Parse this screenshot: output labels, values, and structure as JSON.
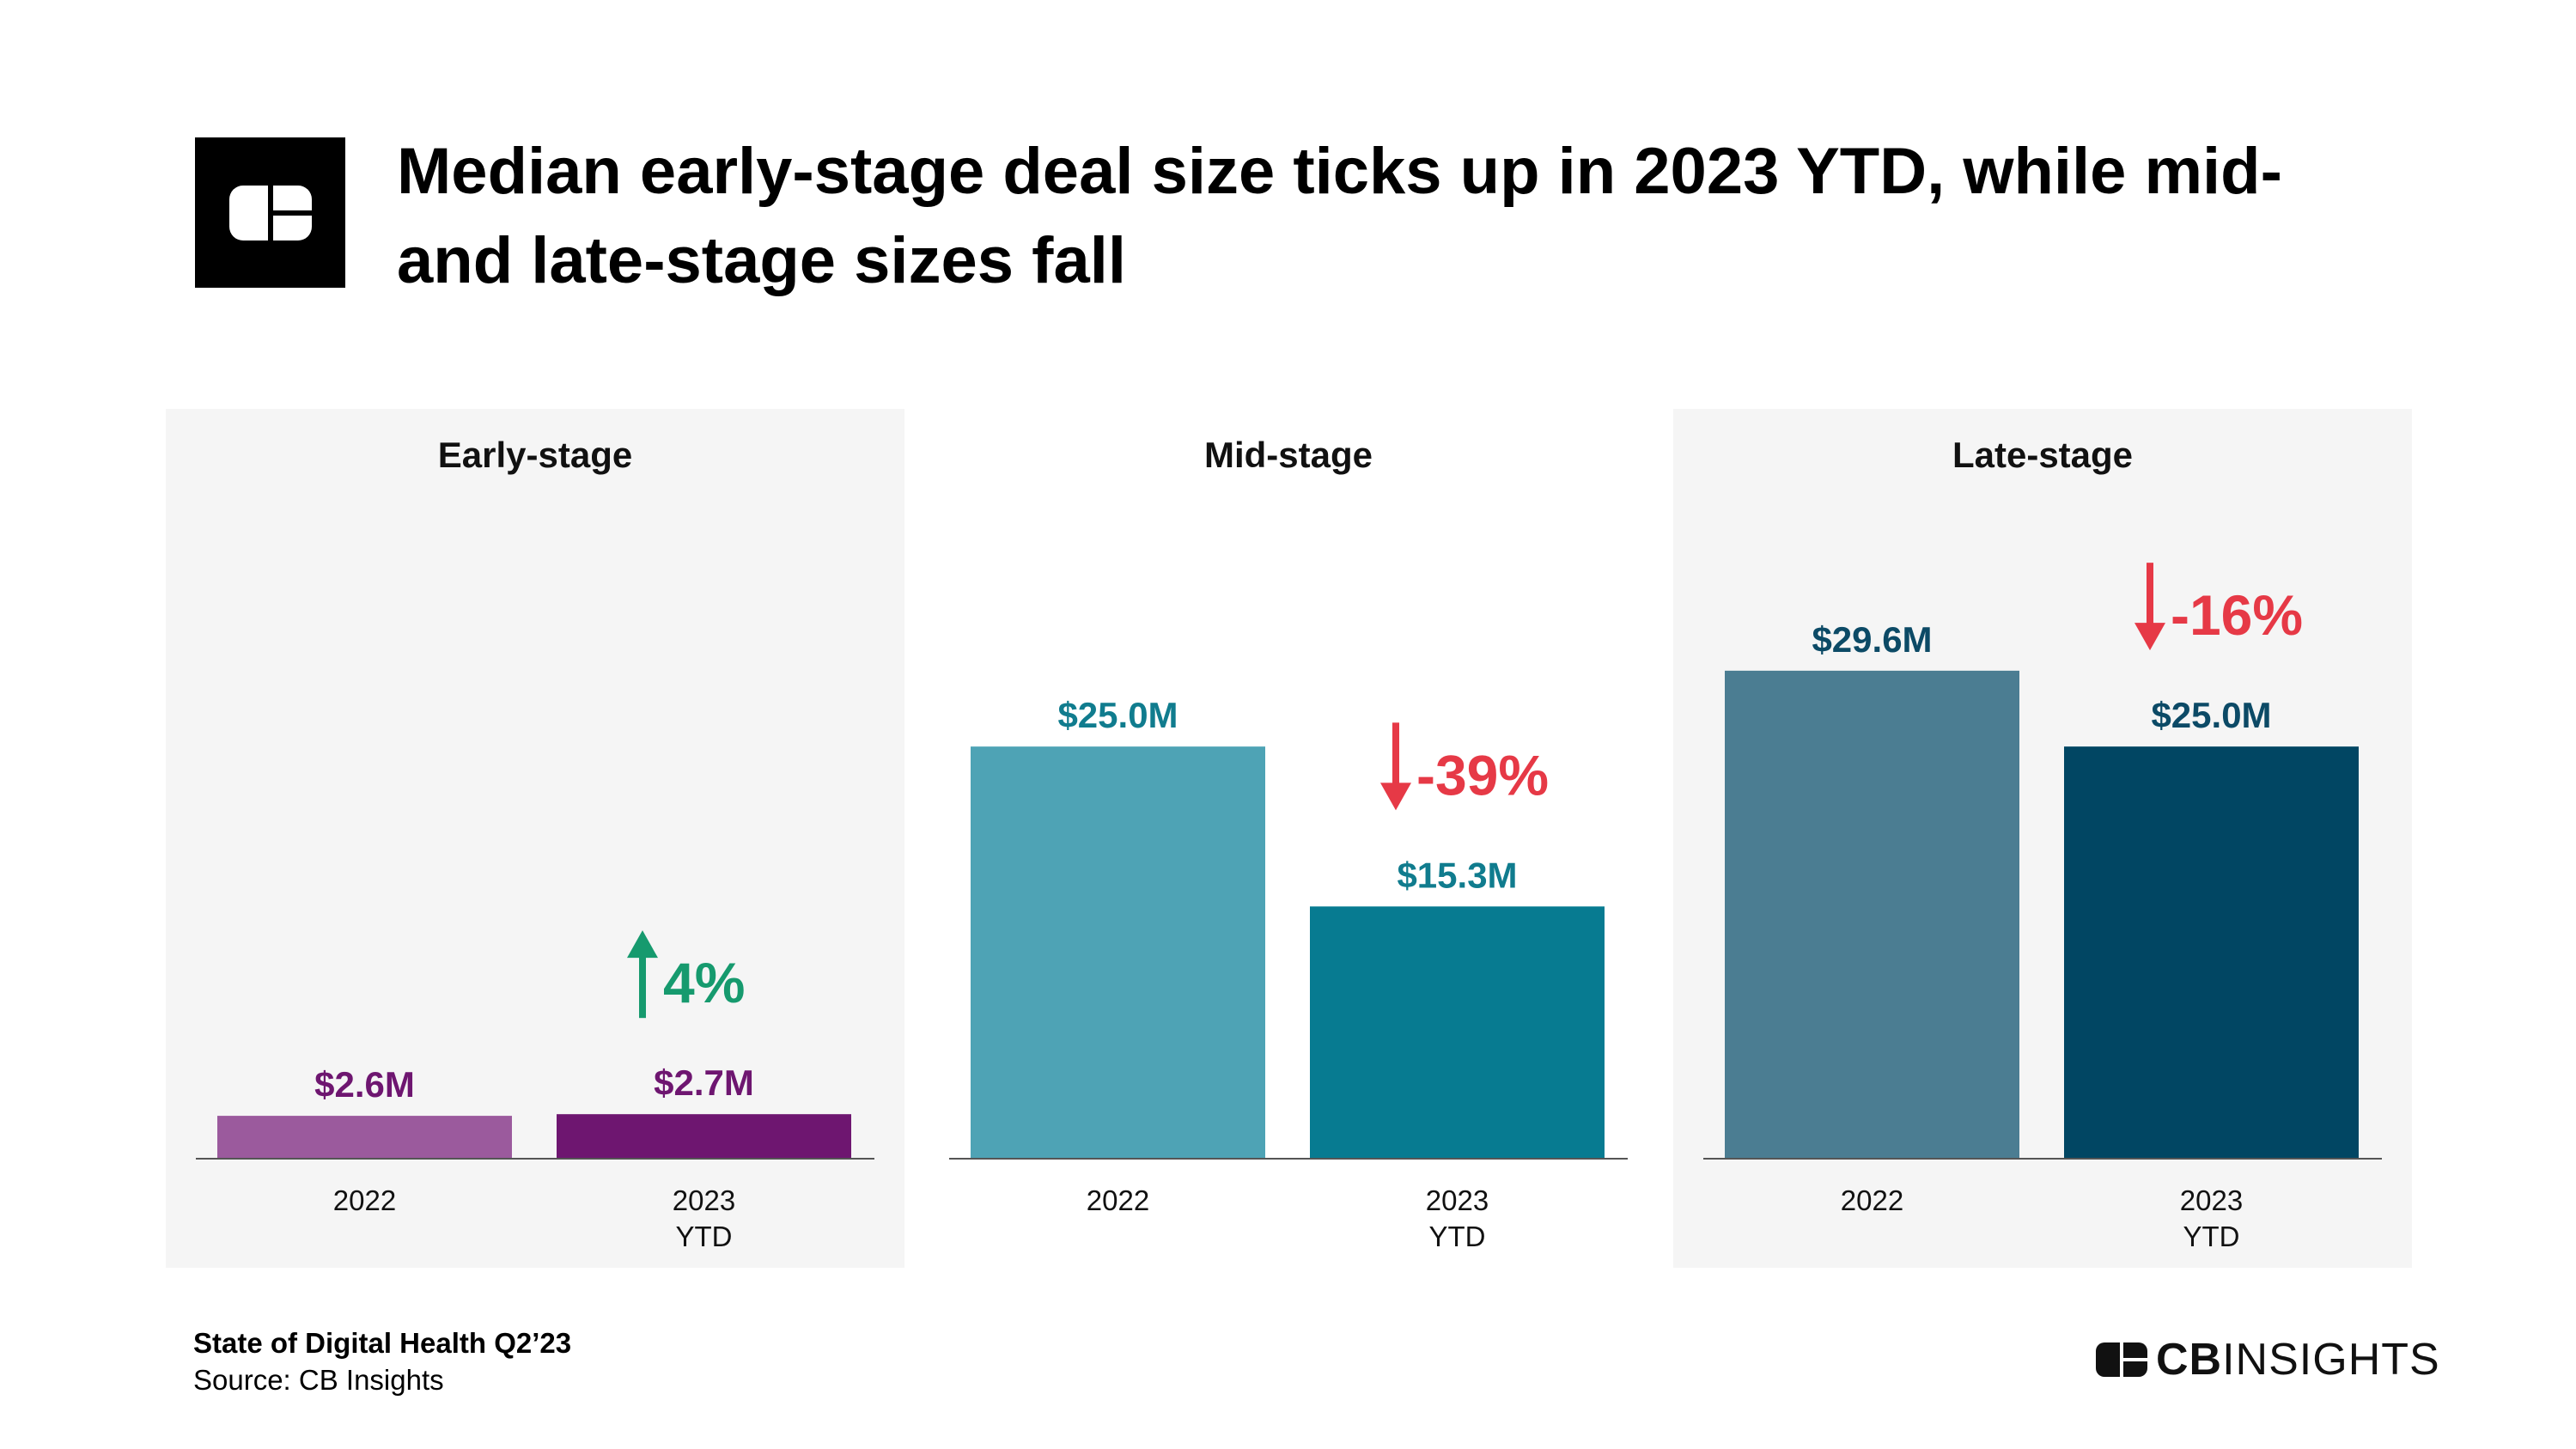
{
  "title": "Median early-stage deal size ticks up in 2023 YTD, while mid- and late-stage sizes fall",
  "footer": {
    "report": "State of Digital Health Q2’23",
    "source": "Source: CB Insights"
  },
  "brand": {
    "bold": "CB",
    "light": "INSIGHTS"
  },
  "chart_data": [
    {
      "type": "bar",
      "title": "Early-stage",
      "categories": [
        [
          "2022"
        ],
        [
          "2023",
          "YTD"
        ]
      ],
      "values": [
        2.6,
        2.7
      ],
      "value_labels": [
        "$2.6M",
        "$2.7M"
      ],
      "colors": [
        "#9b5a9d",
        "#6e1670"
      ],
      "label_color": "#6e1670",
      "change": {
        "label": "4%",
        "direction": "up",
        "color": "#169a6e"
      },
      "ylim": [
        0,
        31
      ],
      "shaded": true
    },
    {
      "type": "bar",
      "title": "Mid-stage",
      "categories": [
        [
          "2022"
        ],
        [
          "2023",
          "YTD"
        ]
      ],
      "values": [
        25.0,
        15.3
      ],
      "value_labels": [
        "$25.0M",
        "$15.3M"
      ],
      "colors": [
        "#4ea3b5",
        "#077b91"
      ],
      "label_color": "#107c8e",
      "change": {
        "label": "-39%",
        "direction": "down",
        "color": "#e63946"
      },
      "ylim": [
        0,
        31
      ],
      "shaded": false
    },
    {
      "type": "bar",
      "title": "Late-stage",
      "categories": [
        [
          "2022"
        ],
        [
          "2023",
          "YTD"
        ]
      ],
      "values": [
        29.6,
        25.0
      ],
      "value_labels": [
        "$29.6M",
        "$25.0M"
      ],
      "colors": [
        "#4b7d92",
        "#014663"
      ],
      "label_color": "#0c4a66",
      "change": {
        "label": "-16%",
        "direction": "down",
        "color": "#e63946"
      },
      "ylim": [
        0,
        31
      ],
      "shaded": true
    }
  ]
}
